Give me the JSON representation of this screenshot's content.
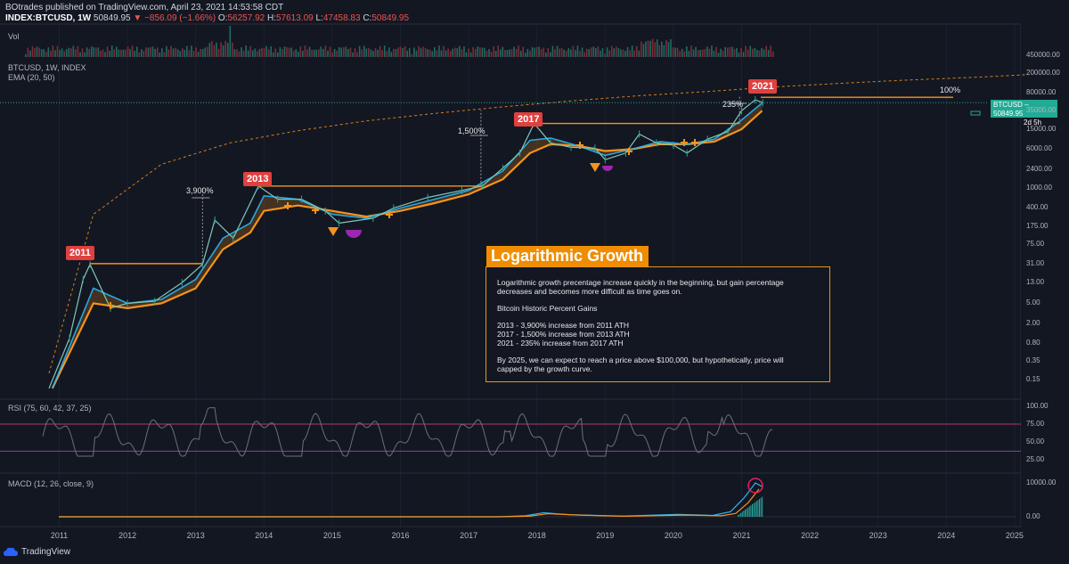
{
  "header": {
    "line1": "BOtrades published on TradingView.com, April 23, 2021 14:53:58 CDT",
    "symbol": "INDEX:BTCUSD, 1W",
    "price": "50849.95",
    "change": "▼ −856.09 (−1.66%)",
    "o_label": "O:",
    "o_val": "56257.92",
    "h_label": "H:",
    "h_val": "57613.09",
    "l_label": "L:",
    "l_val": "47458.83",
    "c_label": "C:",
    "c_val": "50849.95"
  },
  "panels": {
    "vol": "Vol",
    "main": "BTCUSD, 1W, INDEX",
    "ema": "EMA (20, 50)",
    "rsi": "RSI (75, 60, 42, 37, 25)",
    "macd": "MACD (12, 26, close, 9)"
  },
  "tags": [
    "2011",
    "2013",
    "2017",
    "2021"
  ],
  "percent_labels": [
    "3,900%",
    "1,500%",
    "235%",
    "100%"
  ],
  "annotation": {
    "title": "Logarithmic Growth",
    "para1": "Logarithmic growth precentage increase quickly in the beginning, but gain percentage",
    "para1b": "decreases and becomes more difficult as time goes on.",
    "heading": "Bitcoin Historic Percent Gains",
    "gain1": "2013 - 3,900% increase from 2011 ATH",
    "gain2": "2017 - 1,500% increase from 2013 ATH",
    "gain3": "2021 - 235% increase from 2017 ATH",
    "para2": "By 2025, we can expect to reach a price above $100,000, but hypothetically, price will",
    "para2b": "capped by the growth curve."
  },
  "price_label": {
    "symbol": "BTCUSD",
    "value": "50849.95",
    "countdown": "2d 5h"
  },
  "footer": {
    "brand": "TradingView"
  },
  "colors": {
    "background": "#131722",
    "orange": "#f7931a",
    "tag_red": "#e0403f",
    "blue": "#29b6f6",
    "green": "#26a69a",
    "pink": "#e91e63",
    "purple": "#9c27b0"
  },
  "chart_data": {
    "type": "line",
    "title": "BTCUSD, 1W, INDEX",
    "scale": "log",
    "x_ticks": [
      "2011",
      "2012",
      "2013",
      "2014",
      "2015",
      "2016",
      "2017",
      "2018",
      "2019",
      "2020",
      "2021",
      "2022",
      "2023",
      "2024",
      "2025"
    ],
    "y_ticks": [
      "450000.00",
      "200000.00",
      "80000.00",
      "35000.00",
      "15000.00",
      "6000.00",
      "2400.00",
      "1000.00",
      "400.00",
      "175.00",
      "75.00",
      "31.00",
      "13.00",
      "5.00",
      "2.00",
      "0.80",
      "0.35",
      "0.15"
    ],
    "y_range": [
      0.1,
      450000
    ],
    "series": [
      {
        "name": "BTCUSD",
        "x": [
          2010.85,
          2011.15,
          2011.35,
          2011.45,
          2011.75,
          2012.0,
          2012.4,
          2012.8,
          2013.1,
          2013.28,
          2013.55,
          2013.92,
          2014.2,
          2014.55,
          2014.9,
          2015.1,
          2015.6,
          2015.9,
          2016.4,
          2016.9,
          2017.2,
          2017.5,
          2017.75,
          2017.96,
          2018.2,
          2018.5,
          2018.85,
          2019.0,
          2019.3,
          2019.5,
          2019.75,
          2020.0,
          2020.2,
          2020.5,
          2020.8,
          2021.0,
          2021.2,
          2021.31
        ],
        "y": [
          0.1,
          1,
          15,
          30,
          4,
          5,
          5.5,
          13,
          30,
          230,
          100,
          1100,
          600,
          600,
          350,
          200,
          250,
          400,
          650,
          900,
          1100,
          2500,
          5000,
          19500,
          8000,
          6500,
          6300,
          3700,
          5000,
          12000,
          8000,
          7200,
          5000,
          9500,
          13500,
          35000,
          58000,
          50850
        ]
      },
      {
        "name": "EMA 20",
        "x": [
          2010.9,
          2011.5,
          2012.0,
          2012.5,
          2013.0,
          2013.4,
          2013.8,
          2014.0,
          2014.5,
          2015.0,
          2015.5,
          2016.0,
          2016.5,
          2017.0,
          2017.5,
          2017.9,
          2018.2,
          2018.6,
          2019.0,
          2019.4,
          2019.8,
          2020.2,
          2020.6,
          2021.0,
          2021.3
        ],
        "y": [
          0.1,
          10,
          5,
          6,
          15,
          100,
          200,
          700,
          600,
          300,
          250,
          400,
          600,
          900,
          2200,
          9000,
          10000,
          7000,
          4500,
          6000,
          8500,
          7500,
          9500,
          23000,
          50000
        ]
      },
      {
        "name": "EMA 50",
        "x": [
          2010.9,
          2011.5,
          2012.0,
          2012.5,
          2013.0,
          2013.4,
          2013.8,
          2014.0,
          2014.5,
          2015.0,
          2015.5,
          2016.0,
          2016.5,
          2017.0,
          2017.5,
          2017.9,
          2018.2,
          2018.6,
          2019.0,
          2019.4,
          2019.8,
          2020.2,
          2020.6,
          2021.0,
          2021.3
        ],
        "y": [
          0.1,
          5,
          4,
          5,
          10,
          60,
          130,
          350,
          450,
          350,
          270,
          350,
          500,
          750,
          1500,
          5000,
          7500,
          7000,
          5500,
          6000,
          7500,
          7500,
          8500,
          15000,
          35000
        ]
      },
      {
        "name": "Growth curve",
        "x": [
          2010.85,
          2011.5,
          2012.5,
          2013.5,
          2014.5,
          2015.5,
          2016.5,
          2017.5,
          2018.5,
          2019.5,
          2020.5,
          2021.5,
          2022.5,
          2023.5,
          2024.5,
          2025.2
        ],
        "y": [
          0.2,
          300,
          3000,
          8000,
          14000,
          22000,
          31000,
          42000,
          55000,
          70000,
          85000,
          105000,
          125000,
          145000,
          165000,
          185000
        ]
      }
    ],
    "ath_levels": [
      {
        "label": "2011",
        "value": 31,
        "x_from": 2011.45,
        "x_to": 2013.1
      },
      {
        "label": "2013",
        "value": 1100,
        "x_from": 2013.92,
        "x_to": 2017.18
      },
      {
        "label": "2017",
        "value": 19500,
        "x_from": 2017.96,
        "x_to": 2020.97
      },
      {
        "label": "2021",
        "value": 65000,
        "x_from": 2021.28,
        "x_to": 2024.1
      }
    ],
    "rsi": {
      "label": "RSI (75, 60, 42, 37, 25)",
      "y_ticks": [
        "100.00",
        "75.00",
        "50.00",
        "25.00"
      ],
      "levels": [
        75,
        37
      ]
    },
    "macd": {
      "label": "MACD (12, 26, close, 9)",
      "y_ticks": [
        "10000.00",
        "0.00"
      ]
    }
  }
}
